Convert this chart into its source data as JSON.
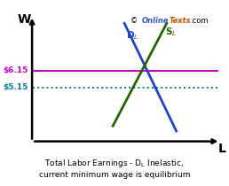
{
  "xlabel": "L",
  "ylabel": "W",
  "wage_eq_label": "$5.15",
  "wage_min_label": "$6.15",
  "eq_line_color": "#007b9a",
  "min_line_color": "#cc00cc",
  "DL_color": "#2244cc",
  "SL_color": "#226600",
  "background_color": "#ffffff",
  "axis_color": "#000000",
  "xlim": [
    0,
    10
  ],
  "ylim": [
    0,
    10
  ],
  "eq_y": 4.2,
  "min_y": 5.5,
  "DL_x1": 4.8,
  "DL_y1": 9.2,
  "DL_x2": 7.5,
  "DL_y2": 0.8,
  "SL_x1": 4.2,
  "SL_y1": 1.2,
  "SL_x2": 7.0,
  "SL_y2": 9.2
}
